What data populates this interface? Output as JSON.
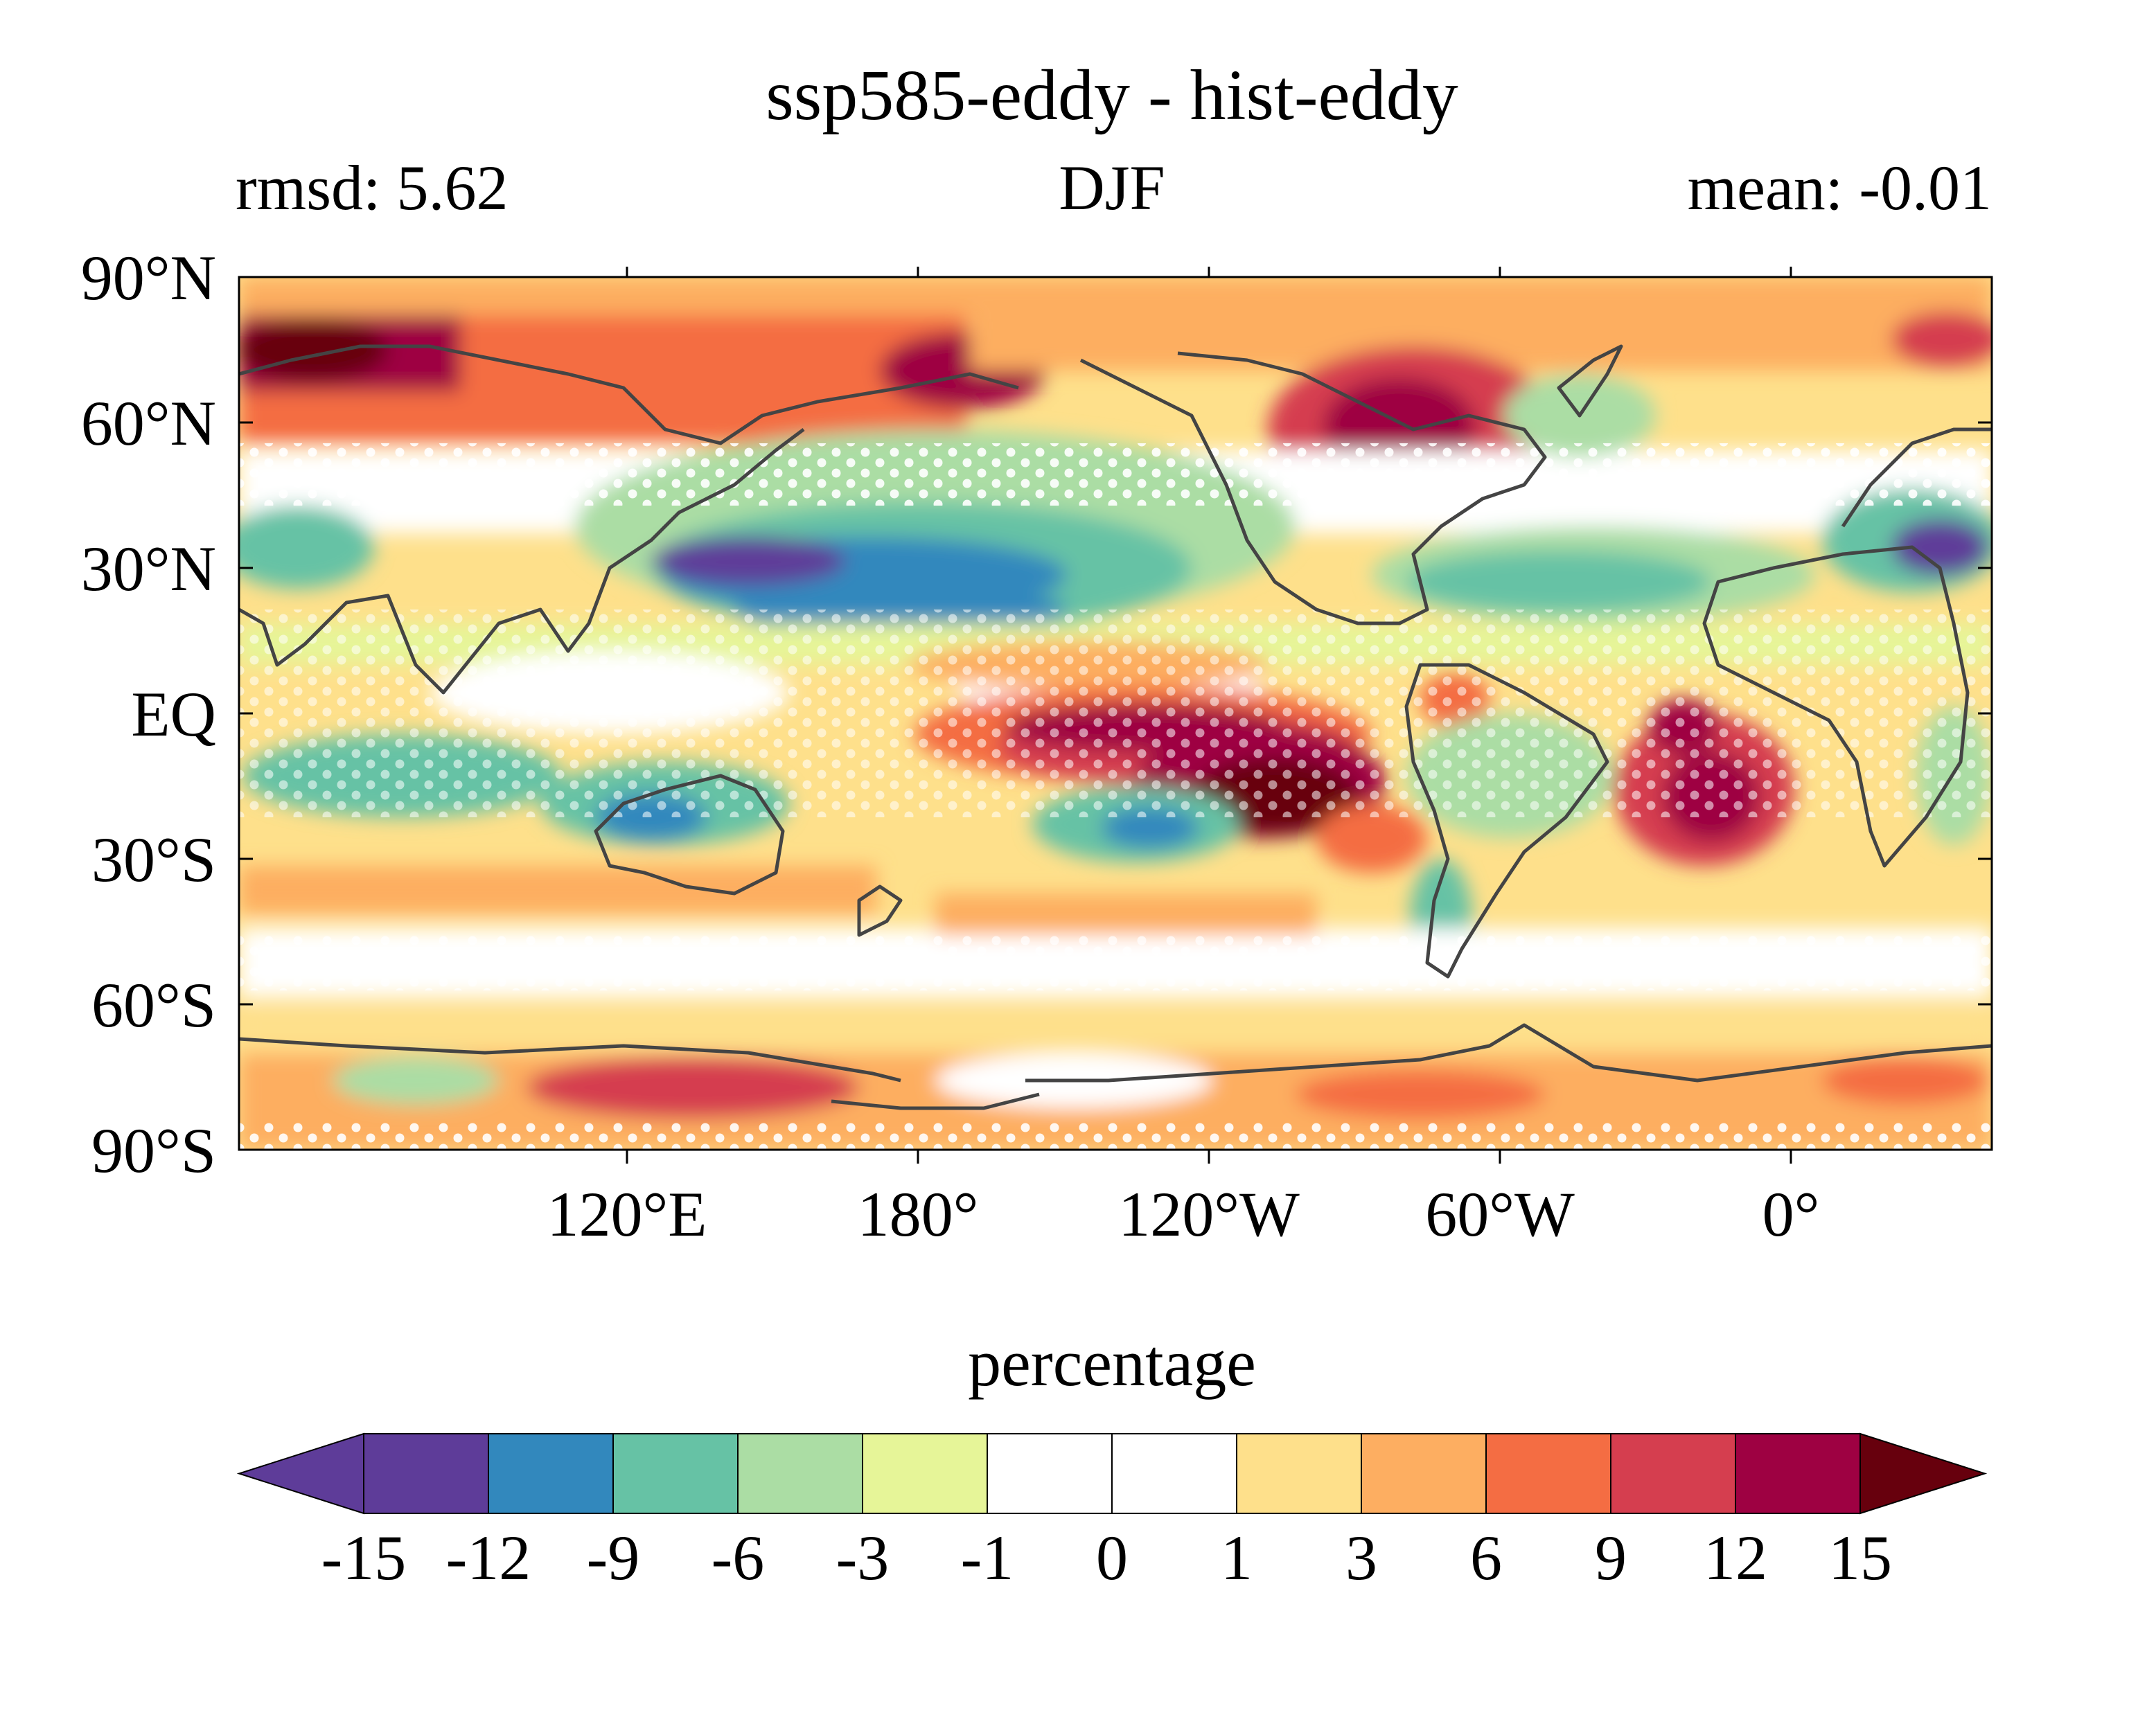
{
  "title": "ssp585-eddy - hist-eddy",
  "left_label": "rmsd: 5.62",
  "center_label": "DJF",
  "right_label": "mean: -0.01",
  "map": {
    "lat_ticks": [
      "90°N",
      "60°N",
      "30°N",
      "EQ",
      "30°S",
      "60°S",
      "90°S"
    ],
    "lon_ticks": [
      "120°E",
      "180°",
      "120°W",
      "60°W",
      "0°"
    ],
    "coastline_color": "#444444",
    "stipple_color": "#ffffff"
  },
  "colorbar": {
    "label": "percentage",
    "levels": [
      "-15",
      "-12",
      "-9",
      "-6",
      "-3",
      "-1",
      "0",
      "1",
      "3",
      "6",
      "9",
      "12",
      "15"
    ],
    "colors": [
      "#5e3c99",
      "#3288bd",
      "#66c2a5",
      "#abdda4",
      "#e6f598",
      "#ffffff",
      "#ffffff",
      "#fee08b",
      "#fdae61",
      "#f46d43",
      "#d53e4f",
      "#9e0142"
    ],
    "under_color": "#5e3c99",
    "over_color": "#67000d"
  }
}
